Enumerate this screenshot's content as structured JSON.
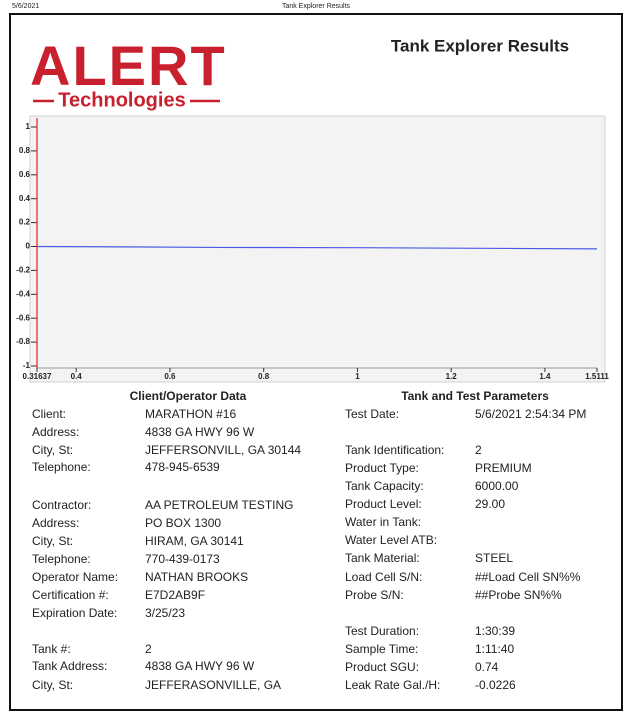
{
  "header": {
    "date": "5/6/2021",
    "page_title": "Tank Explorer Results"
  },
  "logo": {
    "name": "ALERT",
    "tagline": "Technologies"
  },
  "title": "Tank Explorer Results",
  "chart_data": {
    "type": "line",
    "x": [
      0.31637,
      0.5,
      0.7,
      1,
      1.5111
    ],
    "series": [
      {
        "color": "#4a5ae6",
        "values": [
          0,
          -0.003,
          -0.008,
          -0.01,
          -0.02
        ]
      }
    ],
    "xlim": [
      0.31637,
      1.5111
    ],
    "ylim": [
      -1,
      1
    ],
    "xticks": [
      0.31637,
      0.4,
      0.6,
      0.8,
      1,
      1.2,
      1.4,
      1.5111
    ],
    "yticks": [
      -1,
      -0.8,
      -0.6,
      -0.4,
      -0.2,
      0,
      0.2,
      0.4,
      0.6,
      0.8,
      1
    ]
  },
  "client_section": {
    "heading": "Client/Operator Data",
    "rows": [
      {
        "label": "Client:",
        "value": "MARATHON #16"
      },
      {
        "label": "Address:",
        "value": "4838 GA HWY 96 W"
      },
      {
        "label": "City, St:",
        "value": "JEFFERSONVILL, GA 30144"
      },
      {
        "label": "Telephone:",
        "value": "478-945-6539"
      },
      {
        "label": "Contractor:",
        "value": "AA PETROLEUM TESTING"
      },
      {
        "label": "Address:",
        "value": "PO BOX 1300"
      },
      {
        "label": "City, St:",
        "value": "HIRAM, GA 30141"
      },
      {
        "label": "Telephone:",
        "value": "770-439-0173"
      },
      {
        "label": "Operator Name:",
        "value": "NATHAN BROOKS"
      },
      {
        "label": "Certification #:",
        "value": "E7D2AB9F"
      },
      {
        "label": "Expiration Date:",
        "value": "3/25/23"
      },
      {
        "label": "Tank #:",
        "value": "2"
      },
      {
        "label": "Tank Address:",
        "value": "4838 GA HWY 96 W"
      },
      {
        "label": "City, St:",
        "value": "JEFFERASONVILLE, GA"
      }
    ]
  },
  "tank_section": {
    "heading": "Tank and Test Parameters",
    "rows": [
      {
        "label": "Test Date:",
        "value": "5/6/2021 2:54:34 PM"
      },
      {
        "label": "Tank Identification:",
        "value": "2"
      },
      {
        "label": "Product Type:",
        "value": "PREMIUM"
      },
      {
        "label": "Tank Capacity:",
        "value": "6000.00"
      },
      {
        "label": "Product Level:",
        "value": "29.00"
      },
      {
        "label": "Water in Tank:"
      },
      {
        "label": "Water Level ATB:"
      },
      {
        "label": "Tank Material:",
        "value": "STEEL"
      },
      {
        "label": "Load Cell S/N:",
        "value": "##Load Cell SN%%"
      },
      {
        "label": "Probe S/N:",
        "value": "##Probe SN%%"
      },
      {
        "label": "Test Duration:",
        "value": "1:30:39"
      },
      {
        "label": "Sample Time:",
        "value": "1:11:40"
      },
      {
        "label": "Product SGU:",
        "value": "0.74"
      },
      {
        "label": "Leak Rate Gal./H:",
        "value": "-0.0226"
      }
    ]
  }
}
